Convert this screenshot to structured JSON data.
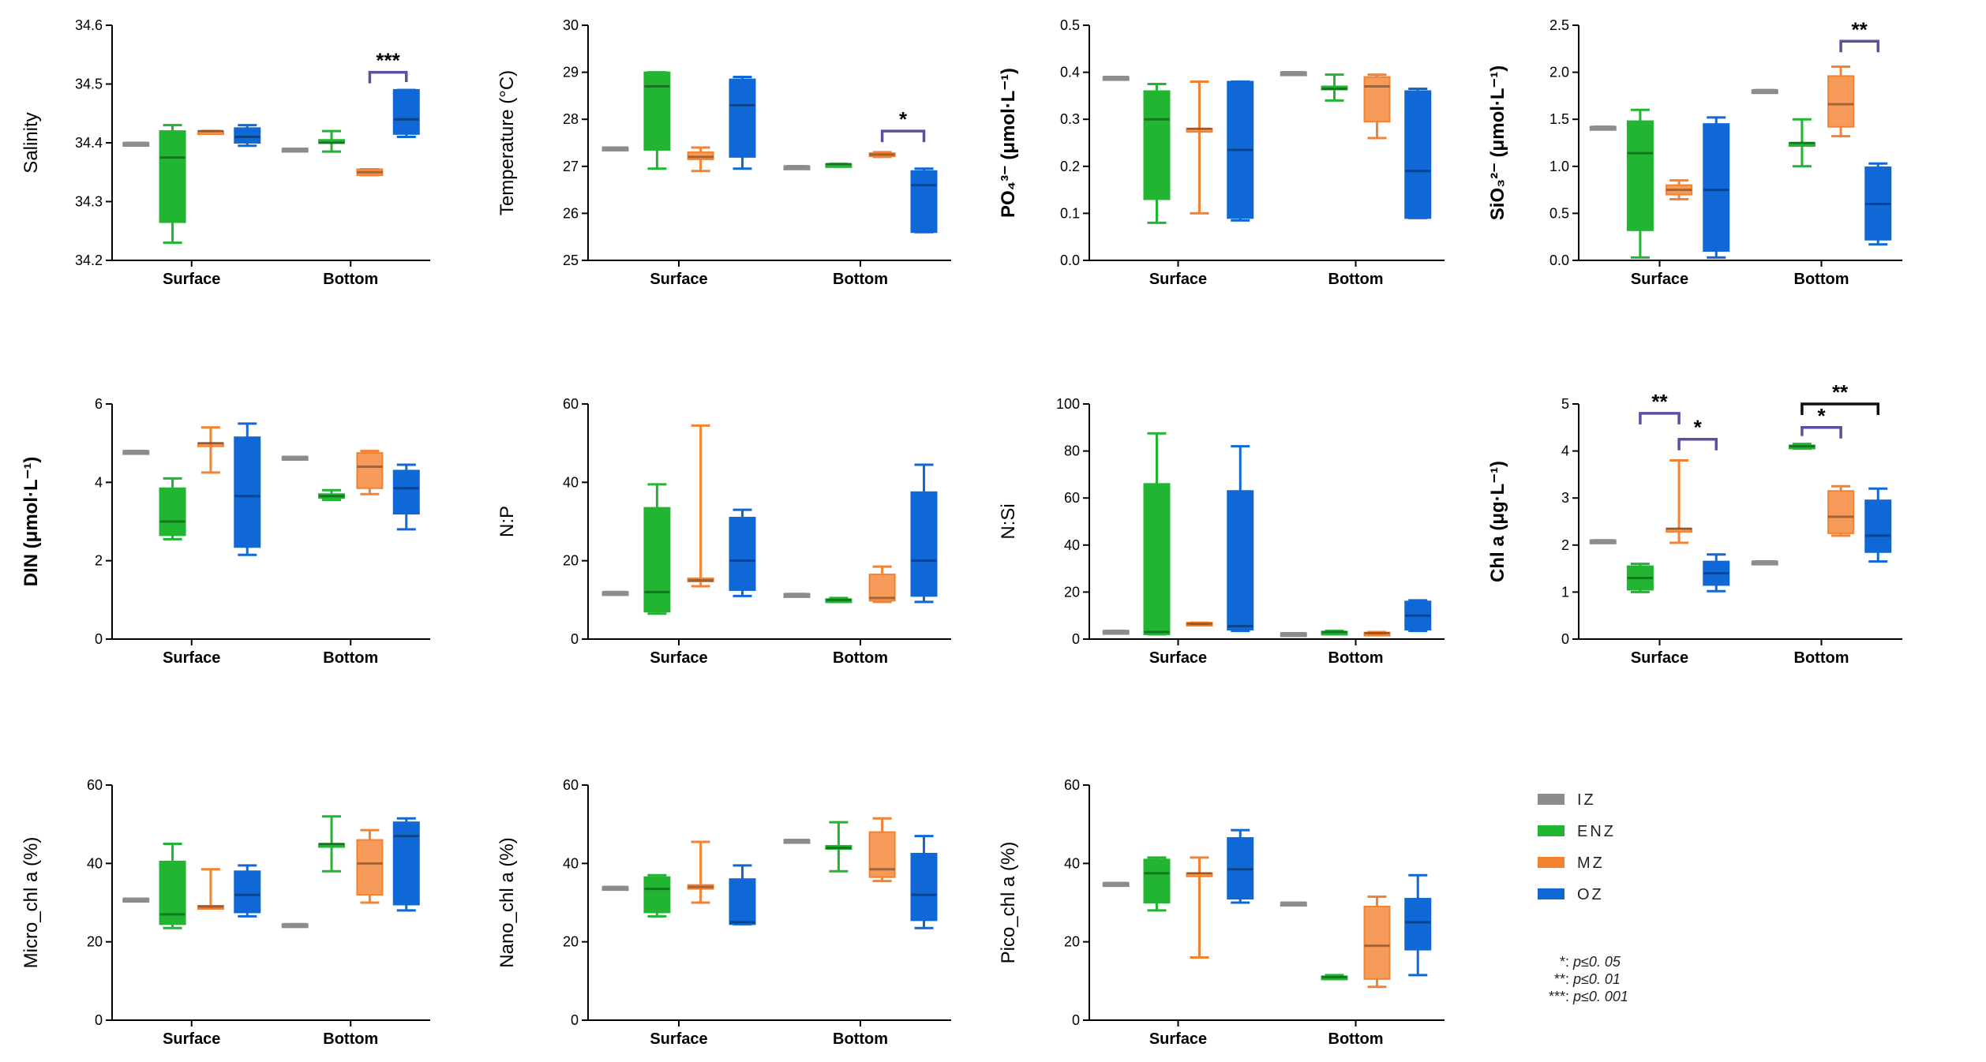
{
  "colors": {
    "IZ": "#8c8c8c",
    "ENZ": "#21b532",
    "MZ": "#f58231",
    "OZ": "#0f68d6",
    "brackets_light": "#5b4f9e",
    "brackets_dark": "#111111"
  },
  "groups": [
    "IZ",
    "ENZ",
    "MZ",
    "OZ"
  ],
  "legend": {
    "items": [
      "IZ",
      "ENZ",
      "MZ",
      "OZ"
    ],
    "significance": [
      {
        "stars": "*:",
        "text": "p≤0. 05"
      },
      {
        "stars": "**:",
        "text": "p≤0. 01"
      },
      {
        "stars": "***:",
        "text": "p≤0. 001"
      }
    ]
  },
  "chart_data": [
    {
      "type": "box",
      "ylabel": "Salinity",
      "categories": [
        "Surface",
        "Bottom"
      ],
      "ylim": [
        34.2,
        34.6
      ],
      "yticks": [
        "34.2",
        "34.3",
        "34.4",
        "34.5",
        "34.6"
      ],
      "boxes": [
        [
          [
            34.4,
            34.4,
            34.4,
            34.4,
            34.4
          ],
          [
            34.23,
            34.265,
            34.375,
            34.42,
            34.43
          ],
          [
            34.42,
            34.42,
            34.42,
            34.42,
            34.42
          ],
          [
            34.395,
            34.4,
            34.41,
            34.425,
            34.43
          ]
        ],
        [
          [
            34.39,
            34.39,
            34.39,
            34.39,
            34.39
          ],
          [
            34.385,
            34.4,
            34.4,
            34.405,
            34.42
          ],
          [
            34.345,
            34.345,
            34.35,
            34.355,
            34.355
          ],
          [
            34.41,
            34.415,
            34.44,
            34.49,
            34.49
          ]
        ]
      ],
      "brackets": [
        {
          "cat": 1,
          "g1": 2,
          "g2": 3,
          "label": "***",
          "y": 34.52,
          "color": "light"
        }
      ]
    },
    {
      "type": "box",
      "ylabel": "Temperature (°C)",
      "categories": [
        "Surface",
        "Bottom"
      ],
      "ylim": [
        25,
        30
      ],
      "yticks": [
        "25",
        "26",
        "27",
        "28",
        "29",
        "30"
      ],
      "boxes": [
        [
          [
            27.4,
            27.4,
            27.4,
            27.4,
            27.4
          ],
          [
            26.95,
            27.35,
            28.7,
            29.0,
            29.0
          ],
          [
            26.9,
            27.15,
            27.2,
            27.3,
            27.4
          ],
          [
            26.95,
            27.2,
            28.3,
            28.85,
            28.9
          ]
        ],
        [
          [
            27.0,
            27.0,
            27.0,
            27.0,
            27.0
          ],
          [
            27.05,
            27.05,
            27.05,
            27.05,
            27.05
          ],
          [
            27.2,
            27.22,
            27.25,
            27.28,
            27.3
          ],
          [
            25.6,
            25.6,
            26.6,
            26.9,
            26.95
          ]
        ]
      ],
      "brackets": [
        {
          "cat": 1,
          "g1": 2,
          "g2": 3,
          "label": "*",
          "y": 27.75,
          "color": "light"
        }
      ]
    },
    {
      "type": "box",
      "ylabel": "PO₄³⁻ (μmol·L⁻¹)",
      "categories": [
        "Surface",
        "Bottom"
      ],
      "ylim": [
        0,
        0.5
      ],
      "yticks": [
        "0.0",
        "0.1",
        "0.2",
        "0.3",
        "0.4",
        "0.5"
      ],
      "boxes": [
        [
          [
            0.39,
            0.39,
            0.39,
            0.39,
            0.39
          ],
          [
            0.08,
            0.13,
            0.3,
            0.36,
            0.375
          ],
          [
            0.1,
            0.28,
            0.28,
            0.28,
            0.38
          ],
          [
            0.085,
            0.09,
            0.235,
            0.38,
            0.38
          ]
        ],
        [
          [
            0.4,
            0.4,
            0.4,
            0.4,
            0.4
          ],
          [
            0.34,
            0.365,
            0.365,
            0.37,
            0.395
          ],
          [
            0.26,
            0.295,
            0.37,
            0.39,
            0.395
          ],
          [
            0.09,
            0.09,
            0.19,
            0.36,
            0.365
          ]
        ]
      ],
      "brackets": []
    },
    {
      "type": "box",
      "ylabel": "SiO₃²⁻ (μmol·L⁻¹)",
      "categories": [
        "Surface",
        "Bottom"
      ],
      "ylim": [
        0,
        2.5
      ],
      "yticks": [
        "0.0",
        "0.5",
        "1.0",
        "1.5",
        "2.0",
        "2.5"
      ],
      "boxes": [
        [
          [
            1.42,
            1.42,
            1.42,
            1.42,
            1.42
          ],
          [
            0.03,
            0.32,
            1.14,
            1.48,
            1.6
          ],
          [
            0.65,
            0.7,
            0.75,
            0.8,
            0.85
          ],
          [
            0.03,
            0.1,
            0.75,
            1.45,
            1.52
          ]
        ],
        [
          [
            1.81,
            1.81,
            1.81,
            1.81,
            1.81
          ],
          [
            1.0,
            1.25,
            1.25,
            1.25,
            1.5
          ],
          [
            1.32,
            1.42,
            1.66,
            1.96,
            2.06
          ],
          [
            0.17,
            0.22,
            0.6,
            0.99,
            1.03
          ]
        ]
      ],
      "brackets": [
        {
          "cat": 1,
          "g1": 2,
          "g2": 3,
          "label": "**",
          "y": 2.33,
          "color": "light"
        }
      ]
    },
    {
      "type": "box",
      "ylabel": "DIN (μmol·L⁻¹)",
      "categories": [
        "Surface",
        "Bottom"
      ],
      "ylim": [
        0,
        6
      ],
      "yticks": [
        "0",
        "2",
        "4",
        "6"
      ],
      "boxes": [
        [
          [
            4.8,
            4.8,
            4.8,
            4.8,
            4.8
          ],
          [
            2.55,
            2.65,
            3.0,
            3.85,
            4.1
          ],
          [
            4.25,
            5.0,
            5.0,
            5.0,
            5.4
          ],
          [
            2.15,
            2.35,
            3.65,
            5.15,
            5.5
          ]
        ],
        [
          [
            4.65,
            4.65,
            4.65,
            4.65,
            4.65
          ],
          [
            3.55,
            3.6,
            3.65,
            3.7,
            3.8
          ],
          [
            3.7,
            3.85,
            4.4,
            4.75,
            4.8
          ],
          [
            2.8,
            3.2,
            3.85,
            4.3,
            4.45
          ]
        ]
      ],
      "brackets": []
    },
    {
      "type": "box",
      "ylabel": "N:P",
      "categories": [
        "Surface",
        "Bottom"
      ],
      "ylim": [
        0,
        60
      ],
      "yticks": [
        "0",
        "20",
        "40",
        "60"
      ],
      "boxes": [
        [
          [
            12.0,
            12.0,
            12.0,
            12.0,
            12.0
          ],
          [
            6.5,
            7.0,
            12.0,
            33.5,
            39.5
          ],
          [
            13.5,
            15.0,
            15.0,
            15.5,
            54.5
          ],
          [
            11.0,
            12.5,
            20.0,
            31.0,
            33.0
          ]
        ],
        [
          [
            11.5,
            11.5,
            11.5,
            11.5,
            11.5
          ],
          [
            9.5,
            9.8,
            10.0,
            10.2,
            10.5
          ],
          [
            9.5,
            9.8,
            10.5,
            16.5,
            18.5
          ],
          [
            9.5,
            11.0,
            20.0,
            37.5,
            44.5
          ]
        ]
      ],
      "brackets": []
    },
    {
      "type": "box",
      "ylabel": "N:Si",
      "categories": [
        "Surface",
        "Bottom"
      ],
      "ylim": [
        0,
        100
      ],
      "yticks": [
        "0",
        "20",
        "40",
        "60",
        "80",
        "100"
      ],
      "boxes": [
        [
          [
            3.5,
            3.5,
            3.5,
            3.5,
            3.5
          ],
          [
            2.0,
            2.0,
            3.0,
            66.0,
            87.5
          ],
          [
            6.0,
            6.2,
            6.5,
            7.0,
            7.0
          ],
          [
            3.5,
            4.0,
            5.5,
            63.0,
            82.0
          ]
        ],
        [
          [
            2.5,
            2.5,
            2.5,
            2.5,
            2.5
          ],
          [
            2.5,
            2.7,
            3.0,
            3.2,
            3.5
          ],
          [
            2.0,
            2.2,
            2.5,
            2.8,
            3.0
          ],
          [
            3.5,
            4.0,
            10.0,
            16.0,
            16.5
          ]
        ]
      ],
      "brackets": []
    },
    {
      "type": "box",
      "ylabel": "Chl a (μg·L⁻¹)",
      "categories": [
        "Surface",
        "Bottom"
      ],
      "ylim": [
        0,
        5
      ],
      "yticks": [
        "0",
        "1",
        "2",
        "3",
        "4",
        "5"
      ],
      "boxes": [
        [
          [
            2.1,
            2.1,
            2.1,
            2.1,
            2.1
          ],
          [
            1.0,
            1.05,
            1.3,
            1.55,
            1.6
          ],
          [
            2.05,
            2.3,
            2.35,
            2.35,
            3.8
          ],
          [
            1.02,
            1.15,
            1.4,
            1.65,
            1.8
          ]
        ],
        [
          [
            1.65,
            1.65,
            1.65,
            1.65,
            1.65
          ],
          [
            4.05,
            4.08,
            4.1,
            4.12,
            4.15
          ],
          [
            2.2,
            2.25,
            2.6,
            3.15,
            3.25
          ],
          [
            1.65,
            1.85,
            2.2,
            2.95,
            3.2
          ]
        ]
      ],
      "brackets": [
        {
          "cat": 0,
          "g1": 1,
          "g2": 2,
          "label": "**",
          "y": 4.8,
          "color": "light"
        },
        {
          "cat": 0,
          "g1": 2,
          "g2": 3,
          "label": "*",
          "y": 4.25,
          "color": "light"
        },
        {
          "cat": 1,
          "g1": 1,
          "g2": 2,
          "label": "*",
          "y": 4.5,
          "color": "light"
        },
        {
          "cat": 1,
          "g1": 1,
          "g2": 3,
          "label": "**",
          "y": 5.0,
          "color": "dark"
        }
      ]
    },
    {
      "type": "box",
      "ylabel": "Micro_chl a (%)",
      "categories": [
        "Surface",
        "Bottom"
      ],
      "ylim": [
        0,
        60
      ],
      "yticks": [
        "0",
        "20",
        "40",
        "60"
      ],
      "boxes": [
        [
          [
            31.0,
            31.0,
            31.0,
            31.0,
            31.0
          ],
          [
            23.5,
            24.5,
            27.0,
            40.5,
            45.0
          ],
          [
            28.5,
            28.8,
            29.0,
            29.2,
            38.5
          ],
          [
            26.5,
            27.5,
            32.0,
            38.0,
            39.5
          ]
        ],
        [
          [
            24.5,
            24.5,
            24.5,
            24.5,
            24.5
          ],
          [
            38.0,
            45.0,
            45.0,
            45.0,
            52.0
          ],
          [
            30.0,
            32.0,
            40.0,
            46.0,
            48.5
          ],
          [
            28.0,
            29.5,
            47.0,
            50.5,
            51.5
          ]
        ]
      ],
      "brackets": []
    },
    {
      "type": "box",
      "ylabel": "Nano_chl a (%)",
      "categories": [
        "Surface",
        "Bottom"
      ],
      "ylim": [
        0,
        60
      ],
      "yticks": [
        "0",
        "20",
        "40",
        "60"
      ],
      "boxes": [
        [
          [
            34.0,
            34.0,
            34.0,
            34.0,
            34.0
          ],
          [
            26.5,
            27.5,
            33.5,
            36.5,
            37.0
          ],
          [
            30.0,
            33.5,
            34.0,
            34.5,
            45.5
          ],
          [
            24.5,
            24.5,
            25.0,
            36.0,
            39.5
          ]
        ],
        [
          [
            46.0,
            46.0,
            46.0,
            46.0,
            46.0
          ],
          [
            38.0,
            44.0,
            44.0,
            44.5,
            50.5
          ],
          [
            35.5,
            36.5,
            38.5,
            48.0,
            51.5
          ],
          [
            23.5,
            25.5,
            32.0,
            42.5,
            47.0
          ]
        ]
      ],
      "brackets": []
    },
    {
      "type": "box",
      "ylabel": "Pico_chl a (%)",
      "categories": [
        "Surface",
        "Bottom"
      ],
      "ylim": [
        0,
        60
      ],
      "yticks": [
        "0",
        "20",
        "40",
        "60"
      ],
      "boxes": [
        [
          [
            35.0,
            35.0,
            35.0,
            35.0,
            35.0
          ],
          [
            28.0,
            30.0,
            37.5,
            41.0,
            41.5
          ],
          [
            16.0,
            37.0,
            37.5,
            37.5,
            41.5
          ],
          [
            30.0,
            31.0,
            38.5,
            46.5,
            48.5
          ]
        ],
        [
          [
            30.0,
            30.0,
            30.0,
            30.0,
            30.0
          ],
          [
            10.5,
            10.8,
            11.0,
            11.2,
            11.5
          ],
          [
            8.5,
            10.5,
            19.0,
            29.0,
            31.5
          ],
          [
            11.5,
            18.0,
            25.0,
            31.0,
            37.0
          ]
        ]
      ],
      "brackets": []
    }
  ]
}
